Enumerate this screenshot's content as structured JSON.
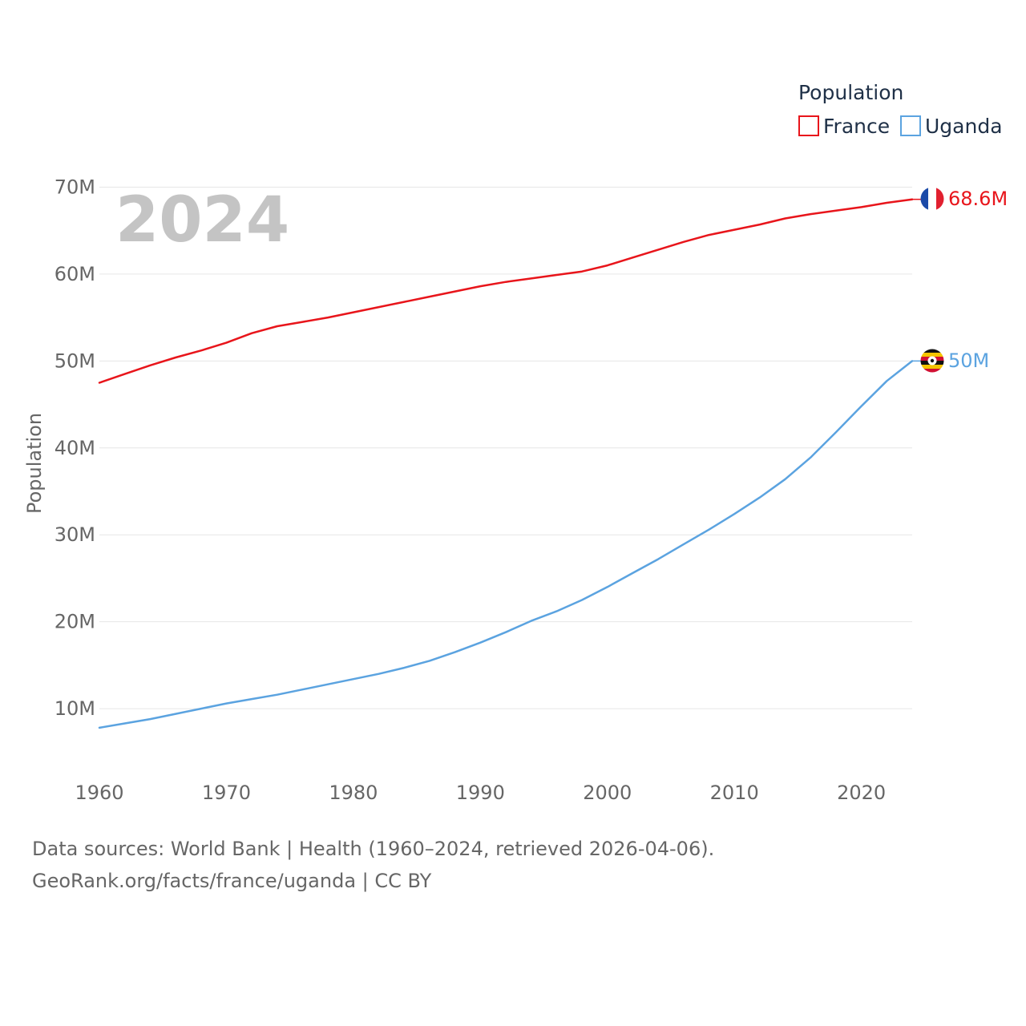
{
  "chart_data": {
    "type": "line",
    "year_label": "2024",
    "ylabel": "Population",
    "xlabel": "",
    "ylim": [
      0,
      70000000
    ],
    "xlim": [
      1960,
      2024
    ],
    "x_ticks": [
      1960,
      1970,
      1980,
      1990,
      2000,
      2010,
      2020
    ],
    "x_tick_labels": [
      "1960",
      "1970",
      "1980",
      "1990",
      "2000",
      "2010",
      "2020"
    ],
    "y_ticks": [
      10000000,
      20000000,
      30000000,
      40000000,
      50000000,
      60000000,
      70000000
    ],
    "y_tick_labels": [
      "10M",
      "20M",
      "30M",
      "40M",
      "50M",
      "60M",
      "70M"
    ],
    "legend": {
      "title": "Population",
      "entries": [
        "France",
        "Uganda"
      ],
      "placement": "top-right"
    },
    "series": [
      {
        "name": "France",
        "color": "#e8151b",
        "end_label": "68.6M",
        "flag": "france-flag",
        "x": [
          1960,
          1962,
          1964,
          1966,
          1968,
          1970,
          1972,
          1974,
          1976,
          1978,
          1980,
          1982,
          1984,
          1986,
          1988,
          1990,
          1992,
          1994,
          1996,
          1998,
          2000,
          2002,
          2004,
          2006,
          2008,
          2010,
          2012,
          2014,
          2016,
          2018,
          2020,
          2022,
          2024
        ],
        "values": [
          47500000,
          48500000,
          49500000,
          50400000,
          51200000,
          52100000,
          53200000,
          54000000,
          54500000,
          55000000,
          55600000,
          56200000,
          56800000,
          57400000,
          58000000,
          58600000,
          59100000,
          59500000,
          59900000,
          60300000,
          61000000,
          61900000,
          62800000,
          63700000,
          64500000,
          65100000,
          65700000,
          66400000,
          66900000,
          67300000,
          67700000,
          68200000,
          68600000
        ]
      },
      {
        "name": "Uganda",
        "color": "#5ba3e0",
        "end_label": "50M",
        "flag": "uganda-flag",
        "x": [
          1960,
          1962,
          1964,
          1966,
          1968,
          1970,
          1972,
          1974,
          1976,
          1978,
          1980,
          1982,
          1984,
          1986,
          1988,
          1990,
          1992,
          1994,
          1996,
          1998,
          2000,
          2002,
          2004,
          2006,
          2008,
          2010,
          2012,
          2014,
          2016,
          2018,
          2020,
          2022,
          2024
        ],
        "values": [
          7800000,
          8300000,
          8800000,
          9400000,
          10000000,
          10600000,
          11100000,
          11600000,
          12200000,
          12800000,
          13400000,
          14000000,
          14700000,
          15500000,
          16500000,
          17600000,
          18800000,
          20100000,
          21200000,
          22500000,
          24000000,
          25600000,
          27200000,
          28900000,
          30600000,
          32400000,
          34300000,
          36400000,
          38900000,
          41800000,
          44800000,
          47700000,
          50000000
        ]
      }
    ]
  },
  "footer": {
    "source": "Data sources: World Bank | Health (1960–2024, retrieved 2026-04-06).",
    "credit": "GeoRank.org/facts/france/uganda | CC BY"
  }
}
